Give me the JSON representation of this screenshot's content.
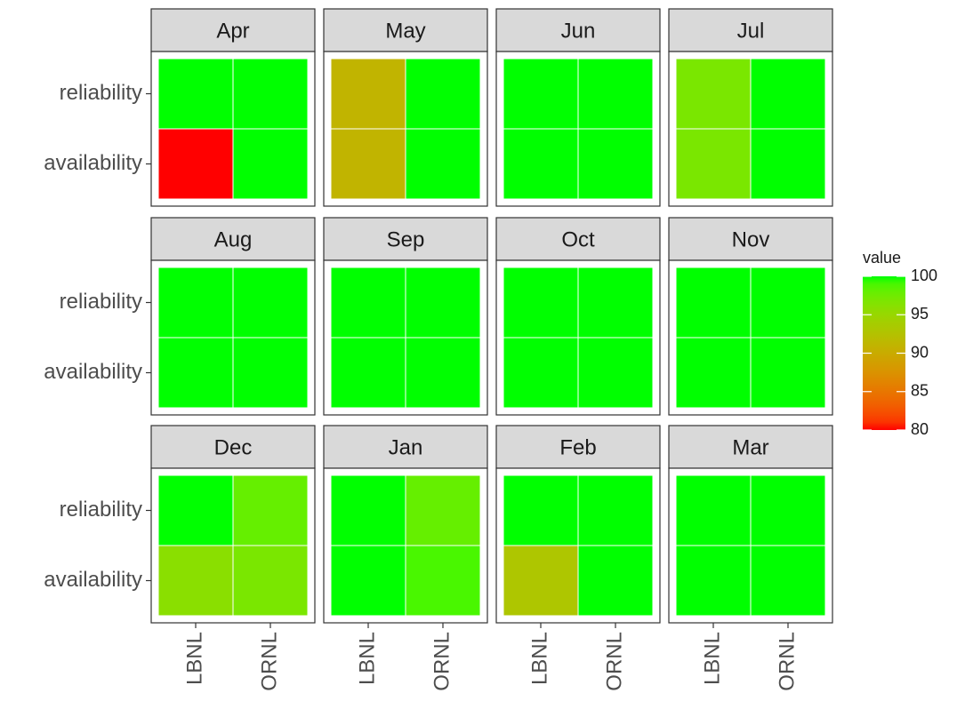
{
  "chart_data": {
    "type": "heatmap",
    "x_categories": [
      "LBNL",
      "ORNL"
    ],
    "y_categories": [
      "reliability",
      "availability"
    ],
    "legend_title": "value",
    "zlim": [
      80,
      100
    ],
    "zticks": [
      80,
      85,
      90,
      95,
      100
    ],
    "low_color": "#ff0000",
    "high_color": "#00ff00",
    "facets": [
      {
        "title": "Apr",
        "values": [
          [
            100,
            100
          ],
          [
            80,
            100
          ]
        ]
      },
      {
        "title": "May",
        "values": [
          [
            91,
            100
          ],
          [
            91,
            100
          ]
        ]
      },
      {
        "title": "Jun",
        "values": [
          [
            100,
            100
          ],
          [
            100,
            100
          ]
        ]
      },
      {
        "title": "Jul",
        "values": [
          [
            97,
            100
          ],
          [
            97,
            100
          ]
        ]
      },
      {
        "title": "Aug",
        "values": [
          [
            100,
            100
          ],
          [
            100,
            100
          ]
        ]
      },
      {
        "title": "Sep",
        "values": [
          [
            100,
            100
          ],
          [
            100,
            100
          ]
        ]
      },
      {
        "title": "Oct",
        "values": [
          [
            100,
            100
          ],
          [
            100,
            100
          ]
        ]
      },
      {
        "title": "Nov",
        "values": [
          [
            100,
            100
          ],
          [
            100,
            100
          ]
        ]
      },
      {
        "title": "Dec",
        "values": [
          [
            100,
            98
          ],
          [
            96,
            97
          ]
        ]
      },
      {
        "title": "Jan",
        "values": [
          [
            100,
            98
          ],
          [
            100,
            99
          ]
        ]
      },
      {
        "title": "Feb",
        "values": [
          [
            100,
            100
          ],
          [
            93,
            100
          ]
        ]
      },
      {
        "title": "Mar",
        "values": [
          [
            100,
            100
          ],
          [
            100,
            100
          ]
        ]
      }
    ]
  }
}
